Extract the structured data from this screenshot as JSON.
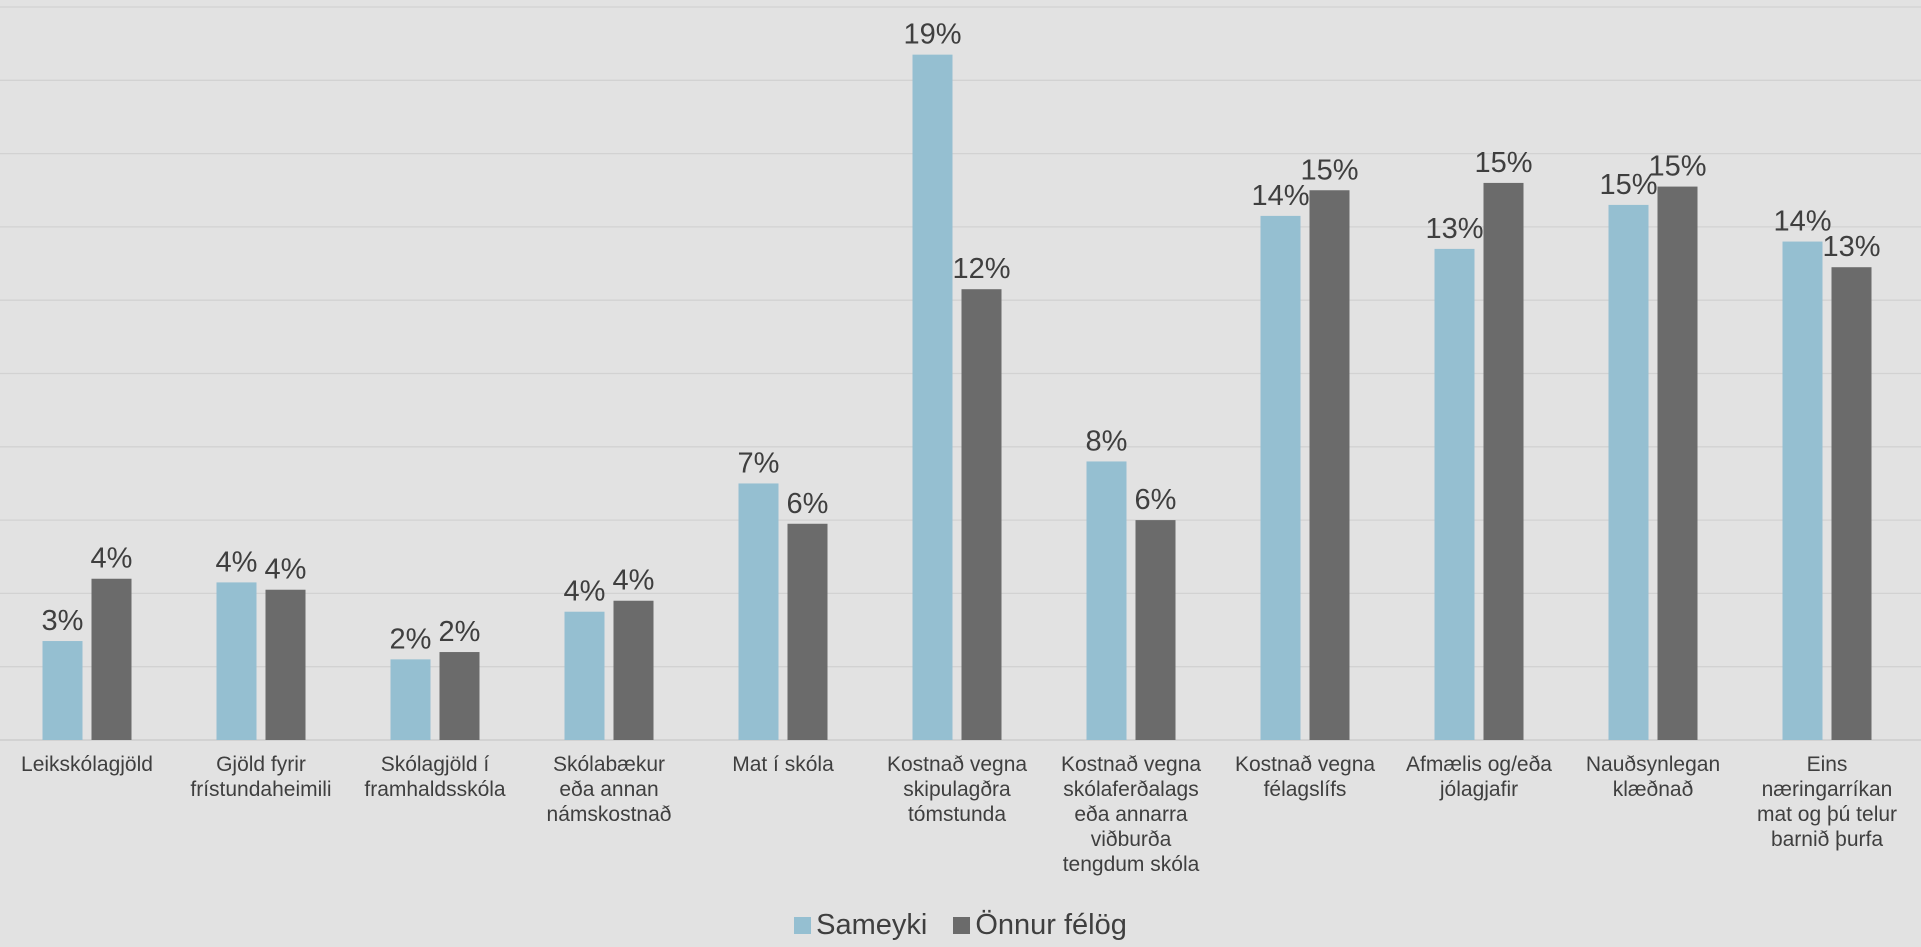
{
  "colors": {
    "background": "#e2e2e2",
    "gridline": "#d2d2d2",
    "text": "#3f3f3f"
  },
  "chart_data": {
    "type": "bar",
    "categories": [
      "Leikskólagjöld",
      "Gjöld fyrir\nfrístundaheimili",
      "Skólagjöld í\nframhaldsskóla",
      "Skólabækur\neða annan\nnámskostnað",
      "Mat í skóla",
      "Kostnað vegna\nskipulagðra\ntómstunda",
      "Kostnað vegna\nskólaferðalags\neða annarra\nviðburða\ntengdum skóla",
      "Kostnað vegna\nfélagslífs",
      "Afmælis og/eða\njólagjafir",
      "Nauðsynlegan\nklæðnað",
      "Eins\nnæringarríkan\nmat og þú telur\nbarnið þurfa"
    ],
    "series": [
      {
        "name": "Sameyki",
        "color": "#95bfd1",
        "values": [
          2.7,
          4.3,
          2.2,
          3.5,
          7.0,
          18.7,
          7.6,
          14.3,
          13.4,
          14.6,
          13.6
        ],
        "labels": [
          "3%",
          "4%",
          "2%",
          "4%",
          "7%",
          "19%",
          "8%",
          "14%",
          "13%",
          "15%",
          "14%"
        ]
      },
      {
        "name": "Önnur félög",
        "color": "#6b6b6b",
        "values": [
          4.4,
          4.1,
          2.4,
          3.8,
          5.9,
          12.3,
          6.0,
          15.0,
          15.2,
          15.1,
          12.9
        ],
        "labels": [
          "4%",
          "4%",
          "2%",
          "4%",
          "6%",
          "12%",
          "6%",
          "15%",
          "15%",
          "15%",
          "13%"
        ]
      }
    ],
    "ylim": [
      0,
      20
    ],
    "grid": true,
    "y_axis_visible": false,
    "legend_position": "bottom-center",
    "title": "",
    "xlabel": "",
    "ylabel": ""
  }
}
